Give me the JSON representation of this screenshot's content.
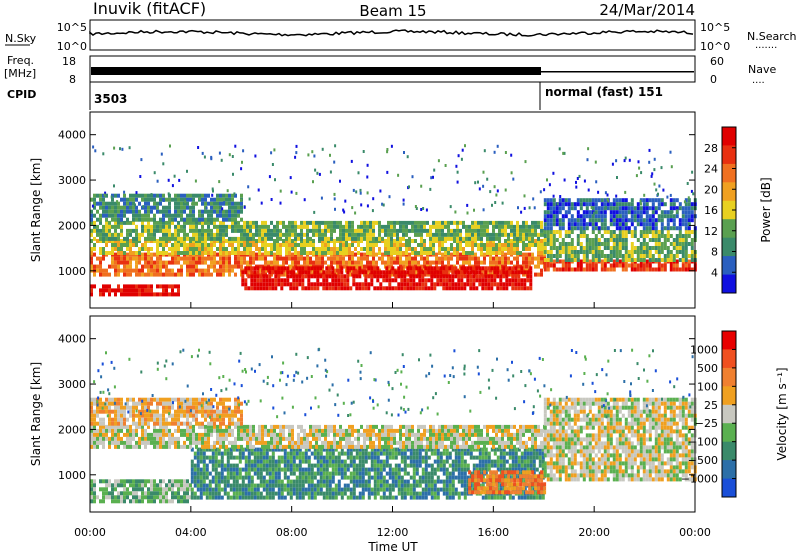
{
  "header": {
    "station": "Inuvik (fitACF)",
    "beam": "Beam 15",
    "date": "24/Mar/2014"
  },
  "top_panel": {
    "nsky_label": "N.Sky",
    "nsearch_label": "N.Search",
    "nsearch_dots": ".......",
    "nsky_tick_high": "10^5",
    "nsky_tick_low": "10^0",
    "freq_label_top": "Freq.",
    "freq_label_bottom": "[MHz]",
    "freq_tick_high": "18",
    "freq_tick_low": "8",
    "nave_label": "Nave",
    "nave_dots": "....",
    "nave_tick_high": "60",
    "nave_tick_low": "0",
    "cpid_label": "CPID",
    "cpid_first": "3503",
    "cpid_second": "normal (fast) 151"
  },
  "chart_data": [
    {
      "type": "heatmap",
      "panel": "power",
      "ylabel": "Slant Range [km]",
      "y_ticks": [
        "1000",
        "2000",
        "3000",
        "4000"
      ],
      "ylim": [
        180,
        4500
      ],
      "xlim_hours": [
        0,
        24
      ],
      "colorbar_label": "Power [dB]",
      "colorbar_ticks": [
        "4",
        "8",
        "12",
        "16",
        "20",
        "24",
        "28"
      ],
      "colorbar_colors": [
        "#1010e0",
        "#2a5fbf",
        "#3a8a6a",
        "#5aa050",
        "#e8d020",
        "#f0a020",
        "#f07020",
        "#e83010",
        "#e00000"
      ],
      "bands": [
        {
          "t0": 0.0,
          "t1": 3.5,
          "r0": 450,
          "r1": 700,
          "level": 8
        },
        {
          "t0": 0.0,
          "t1": 18.0,
          "r0": 900,
          "r1": 1400,
          "level": 6
        },
        {
          "t0": 0.0,
          "t1": 18.0,
          "r0": 1400,
          "r1": 1700,
          "level": 4
        },
        {
          "t0": 0.0,
          "t1": 18.0,
          "r0": 1700,
          "r1": 2100,
          "level": 3
        },
        {
          "t0": 0.0,
          "t1": 6.0,
          "r0": 2100,
          "r1": 2700,
          "level": 2
        },
        {
          "t0": 6.0,
          "t1": 17.5,
          "r0": 650,
          "r1": 1100,
          "level": 8
        },
        {
          "t0": 18.0,
          "t1": 24.0,
          "r0": 1000,
          "r1": 1250,
          "level": 7
        },
        {
          "t0": 18.0,
          "t1": 24.0,
          "r0": 1250,
          "r1": 1900,
          "level": 3
        },
        {
          "t0": 18.0,
          "t1": 24.0,
          "r0": 1900,
          "r1": 2600,
          "level": 1
        }
      ]
    },
    {
      "type": "heatmap",
      "panel": "velocity",
      "ylabel": "Slant Range [km]",
      "y_ticks": [
        "1000",
        "2000",
        "3000",
        "4000"
      ],
      "ylim": [
        180,
        4500
      ],
      "xlim_hours": [
        0,
        24
      ],
      "x_ticks": [
        "00:00",
        "04:00",
        "08:00",
        "12:00",
        "16:00",
        "20:00",
        "00:00"
      ],
      "xlabel": "Time UT",
      "colorbar_label": "Velocity [m s⁻¹]",
      "colorbar_ticks": [
        "1000",
        "500",
        "100",
        "25",
        "−25",
        "−100",
        "−500",
        "−1000"
      ],
      "colorbar_colors": [
        "#1a4fd8",
        "#2c6fa8",
        "#3a8a6a",
        "#5ab050",
        "#c8c8c0",
        "#f0a020",
        "#f08030",
        "#f05020",
        "#e80000"
      ],
      "bands": [
        {
          "t0": 0.0,
          "t1": 4.0,
          "r0": 450,
          "r1": 900,
          "level": 3
        },
        {
          "t0": 4.0,
          "t1": 18.0,
          "r0": 500,
          "r1": 1600,
          "level": 2
        },
        {
          "t0": 0.0,
          "t1": 18.0,
          "r0": 1600,
          "r1": 2100,
          "level": 4
        },
        {
          "t0": 0.0,
          "t1": 6.0,
          "r0": 2100,
          "r1": 2700,
          "level": 5
        },
        {
          "t0": 15.0,
          "t1": 18.0,
          "r0": 600,
          "r1": 1100,
          "level": 6
        },
        {
          "t0": 18.0,
          "t1": 24.0,
          "r0": 900,
          "r1": 2000,
          "level": 4
        },
        {
          "t0": 18.0,
          "t1": 24.0,
          "r0": 2000,
          "r1": 2700,
          "level": 4
        }
      ]
    }
  ]
}
